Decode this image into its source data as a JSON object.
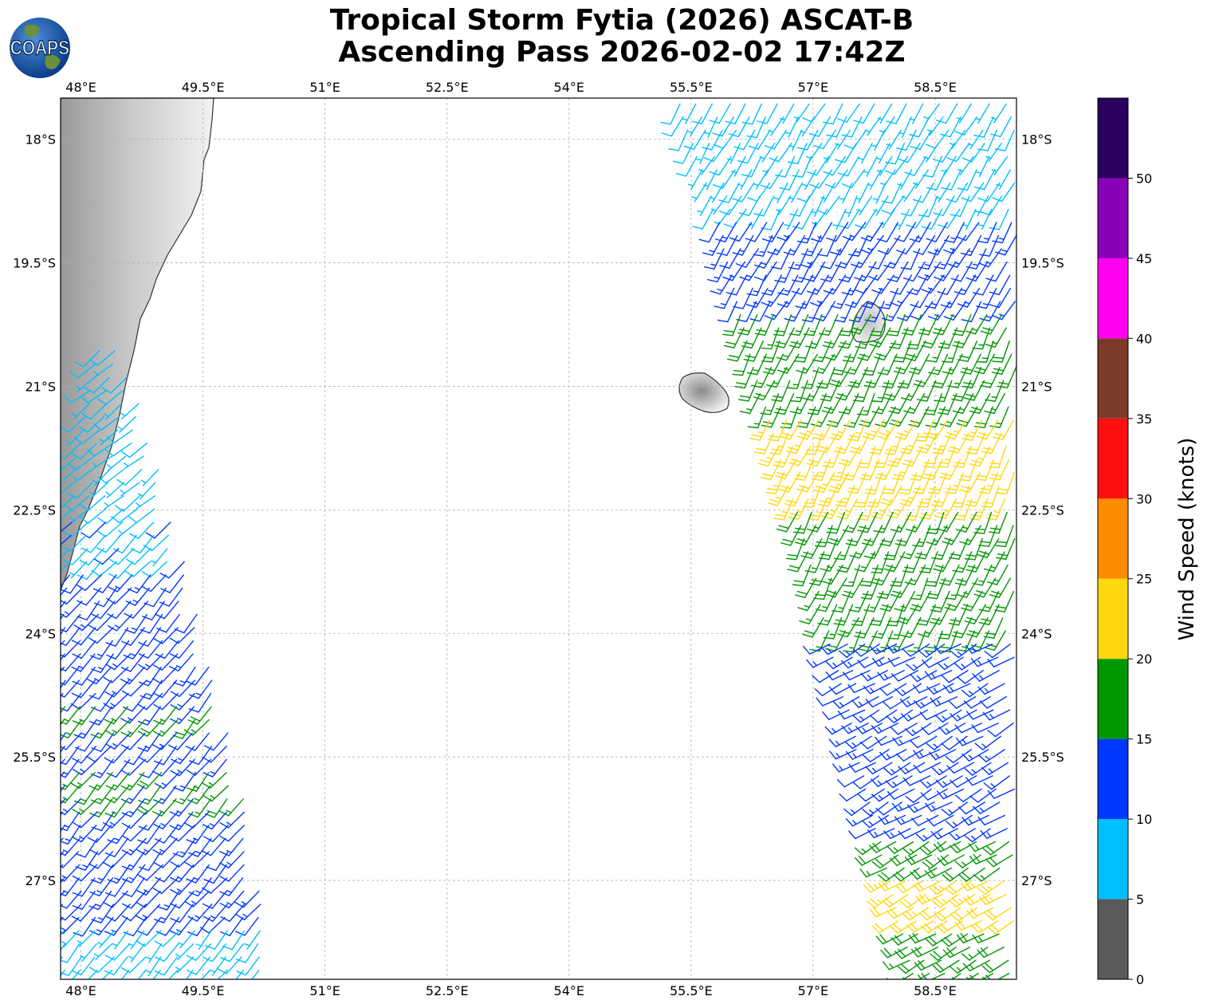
{
  "title": {
    "line1": "Tropical Storm Fytia (2026) ASCAT-B",
    "line2": "Ascending Pass 2026-02-02 17:42Z"
  },
  "logo": {
    "text": "COAPS"
  },
  "map": {
    "lon_range": [
      47.75,
      59.5
    ],
    "lat_range": [
      -28.2,
      -17.5
    ],
    "lon_ticks": [
      {
        "value": 48.0,
        "label": "48°E"
      },
      {
        "value": 49.5,
        "label": "49.5°E"
      },
      {
        "value": 51.0,
        "label": "51°E"
      },
      {
        "value": 52.5,
        "label": "52.5°E"
      },
      {
        "value": 54.0,
        "label": "54°E"
      },
      {
        "value": 55.5,
        "label": "55.5°E"
      },
      {
        "value": 57.0,
        "label": "57°E"
      },
      {
        "value": 58.5,
        "label": "58.5°E"
      }
    ],
    "lat_ticks": [
      {
        "value": -18.0,
        "label": "18°S"
      },
      {
        "value": -19.5,
        "label": "19.5°S"
      },
      {
        "value": -21.0,
        "label": "21°S"
      },
      {
        "value": -22.5,
        "label": "22.5°S"
      },
      {
        "value": -24.0,
        "label": "24°S"
      },
      {
        "value": -25.5,
        "label": "25.5°S"
      },
      {
        "value": -27.0,
        "label": "27°S"
      }
    ],
    "gridlines": true,
    "land_features": [
      "Madagascar",
      "Réunion",
      "Mauritius"
    ]
  },
  "colorbar": {
    "label": "Wind Speed (knots)",
    "range": [
      0,
      55
    ],
    "ticks": [
      0,
      5,
      10,
      15,
      20,
      25,
      30,
      35,
      40,
      45,
      50
    ],
    "bins": [
      {
        "from": 0,
        "to": 5,
        "color": "#5a5a5a"
      },
      {
        "from": 5,
        "to": 10,
        "color": "#00bfff"
      },
      {
        "from": 10,
        "to": 15,
        "color": "#0038ff"
      },
      {
        "from": 15,
        "to": 20,
        "color": "#009600"
      },
      {
        "from": 20,
        "to": 25,
        "color": "#ffd70f"
      },
      {
        "from": 25,
        "to": 30,
        "color": "#ff8c00"
      },
      {
        "from": 30,
        "to": 35,
        "color": "#ff1010"
      },
      {
        "from": 35,
        "to": 40,
        "color": "#7d3a28"
      },
      {
        "from": 40,
        "to": 45,
        "color": "#ff00f0"
      },
      {
        "from": 45,
        "to": 50,
        "color": "#8a00b8"
      },
      {
        "from": 50,
        "to": 55,
        "color": "#2a0060"
      }
    ]
  },
  "chart_data": {
    "type": "wind-barb",
    "swaths": [
      {
        "name": "west swath",
        "edges": [
          {
            "lat": -20.5,
            "lon_min": 48.2,
            "lon_max": 48.5
          },
          {
            "lat": -22.0,
            "lon_min": 47.9,
            "lon_max": 48.95
          },
          {
            "lat": -24.0,
            "lon_min": 47.75,
            "lon_max": 49.5
          },
          {
            "lat": -26.0,
            "lon_min": 47.75,
            "lon_max": 50.0
          },
          {
            "lat": -28.2,
            "lon_min": 47.75,
            "lon_max": 50.4
          }
        ],
        "speed_regions": [
          {
            "lat_from": -20.4,
            "lat_to": -22.6,
            "speed_kt": 8,
            "dir_deg": 140
          },
          {
            "lat_from": -22.6,
            "lat_to": -23.2,
            "speed_kt": 9,
            "dir_deg": 135
          },
          {
            "lat_from": -23.2,
            "lat_to": -28.2,
            "speed_kt": 12,
            "dir_deg": 130
          },
          {
            "lat_from": -24.8,
            "lat_to": -25.2,
            "speed_kt": 16,
            "dir_deg": 130
          },
          {
            "lat_from": -25.6,
            "lat_to": -26.1,
            "speed_kt": 16,
            "dir_deg": 130
          },
          {
            "lat_from": -27.5,
            "lat_to": -28.2,
            "speed_kt": 8,
            "dir_deg": 130
          }
        ]
      },
      {
        "name": "east swath",
        "edges": [
          {
            "lat": -17.5,
            "lon_min": 55.3,
            "lon_max": 59.5
          },
          {
            "lat": -19.0,
            "lon_min": 55.8,
            "lon_max": 59.5
          },
          {
            "lat": -21.0,
            "lon_min": 56.3,
            "lon_max": 59.5
          },
          {
            "lat": -23.0,
            "lon_min": 56.9,
            "lon_max": 59.5
          },
          {
            "lat": -25.0,
            "lon_min": 57.4,
            "lon_max": 59.5
          },
          {
            "lat": -28.2,
            "lon_min": 58.2,
            "lon_max": 59.5
          }
        ],
        "speed_regions": [
          {
            "lat_from": -17.5,
            "lat_to": -18.1,
            "speed_kt": 3,
            "dir_deg": 90
          },
          {
            "lat_from": -17.5,
            "lat_to": -19.2,
            "speed_kt": 8,
            "dir_deg": 120
          },
          {
            "lat_from": -19.0,
            "lat_to": -21.0,
            "speed_kt": 13,
            "dir_deg": 120
          },
          {
            "lat_from": -20.0,
            "lat_to": -24.0,
            "speed_kt": 18,
            "dir_deg": 115
          },
          {
            "lat_from": -21.3,
            "lat_to": -22.5,
            "speed_kt": 22,
            "dir_deg": 115
          },
          {
            "lat_from": -24.0,
            "lat_to": -28.2,
            "speed_kt": 13,
            "dir_deg": 150
          },
          {
            "lat_from": -26.5,
            "lat_to": -28.2,
            "speed_kt": 18,
            "dir_deg": 150
          },
          {
            "lat_from": -27.0,
            "lat_to": -27.6,
            "speed_kt": 22,
            "dir_deg": 150
          }
        ]
      }
    ]
  }
}
